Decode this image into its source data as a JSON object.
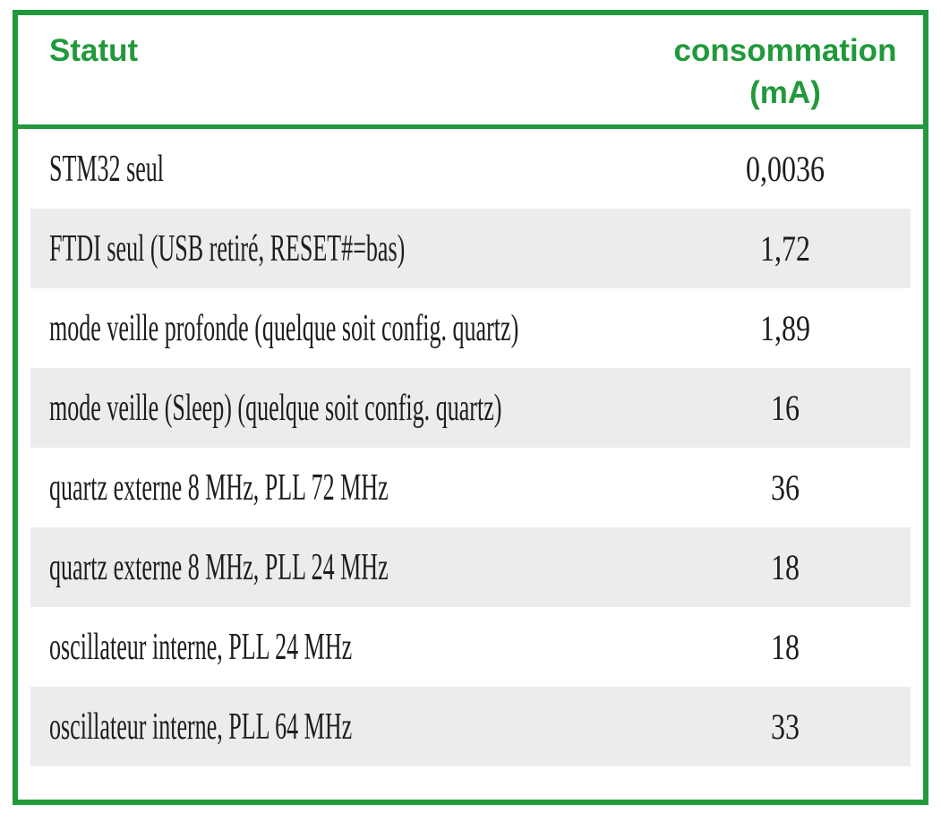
{
  "colors": {
    "accent_green": "#21993b",
    "row_alt_gray": "#ececee",
    "text": "#1d1d1b"
  },
  "table": {
    "headers": {
      "statut": "Statut",
      "consommation": "consommation\n(mA)"
    },
    "rows": [
      {
        "statut": "STM32 seul",
        "consommation_mA": "0,0036"
      },
      {
        "statut": "FTDI seul (USB retiré, RESET#=bas)",
        "consommation_mA": "1,72"
      },
      {
        "statut": "mode veille profonde (quelque soit config. quartz)",
        "consommation_mA": "1,89"
      },
      {
        "statut": "mode veille (Sleep) (quelque soit config. quartz)",
        "consommation_mA": "16"
      },
      {
        "statut": "quartz externe 8 MHz, PLL 72 MHz",
        "consommation_mA": "36"
      },
      {
        "statut": "quartz externe 8 MHz, PLL 24 MHz",
        "consommation_mA": "18"
      },
      {
        "statut": "oscillateur interne, PLL 24 MHz",
        "consommation_mA": "18"
      },
      {
        "statut": "oscillateur interne, PLL 64 MHz",
        "consommation_mA": "33"
      }
    ]
  }
}
